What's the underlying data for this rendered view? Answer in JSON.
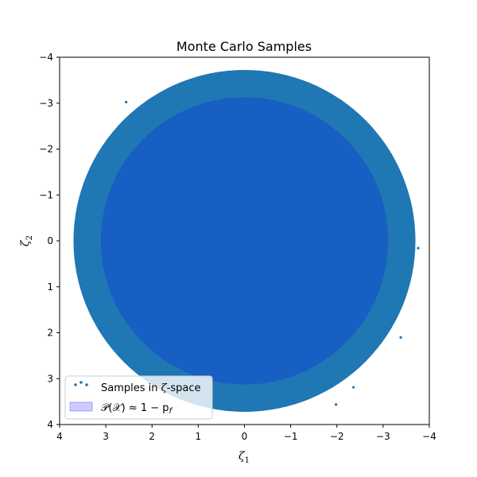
{
  "chart_data": {
    "type": "scatter",
    "title": "Monte Carlo Samples",
    "xlabel_symbol": "ζ",
    "xlabel_sub": "1",
    "ylabel_symbol": "ζ",
    "ylabel_sub": "2",
    "xlim": [
      4,
      -4
    ],
    "ylim": [
      4,
      -4
    ],
    "x_ticks": [
      4,
      3,
      2,
      1,
      0,
      -1,
      -2,
      -3,
      -4
    ],
    "y_ticks": [
      -4,
      -3,
      -2,
      -1,
      0,
      1,
      2,
      3,
      4
    ],
    "x_tick_labels": [
      "4",
      "3",
      "2",
      "1",
      "0",
      "−1",
      "−2",
      "−3",
      "−4"
    ],
    "y_tick_labels": [
      "−4",
      "−3",
      "−2",
      "−1",
      "0",
      "1",
      "2",
      "3",
      "4"
    ],
    "grid": false,
    "legend_position": "lower-left",
    "series": [
      {
        "name": "Samples in ζ-space",
        "kind": "scatter",
        "distribution": "standard bivariate normal",
        "color": "#1f77b4"
      },
      {
        "name": "P(X) ≈ 1 − p_f",
        "kind": "circle",
        "center": [
          0,
          0
        ],
        "radius": 3.1,
        "color": "#0000ff",
        "alpha": 0.2
      }
    ],
    "legend": {
      "samples_pre": "Samples in ",
      "samples_sym": "ζ",
      "samples_post": "-space",
      "region_label": "𝒫(𝒳) ≈ 1 − p",
      "region_sub": "f"
    }
  }
}
